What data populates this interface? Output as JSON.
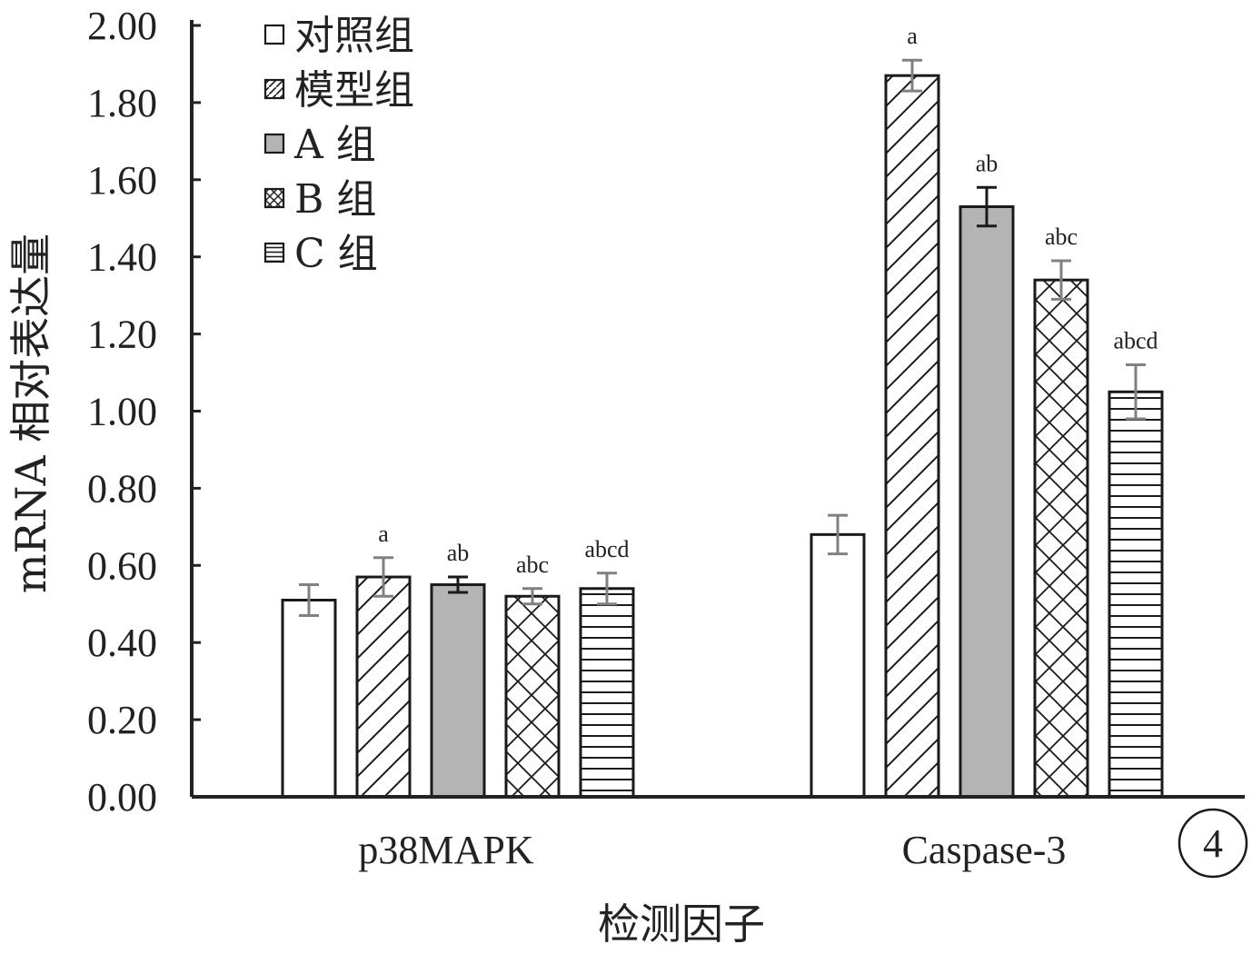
{
  "chart_data": {
    "type": "bar",
    "categories": [
      "p38MAPK",
      "Caspase-3"
    ],
    "series": [
      {
        "name": "对照组",
        "values": [
          0.51,
          0.68
        ],
        "errors": [
          0.04,
          0.05
        ],
        "sig": [
          "",
          ""
        ],
        "pattern": "empty",
        "fill": "#ffffff"
      },
      {
        "name": "模型组",
        "values": [
          0.57,
          1.87
        ],
        "errors": [
          0.05,
          0.04
        ],
        "sig": [
          "a",
          "a"
        ],
        "pattern": "diagonal",
        "fill": "#ffffff"
      },
      {
        "name": "A 组",
        "values": [
          0.55,
          1.53
        ],
        "errors": [
          0.02,
          0.05
        ],
        "sig": [
          "ab",
          "ab"
        ],
        "pattern": "solid",
        "fill": "#b4b4b4"
      },
      {
        "name": "B 组",
        "values": [
          0.52,
          1.34
        ],
        "errors": [
          0.02,
          0.05
        ],
        "sig": [
          "abc",
          "abc"
        ],
        "pattern": "crosshatch",
        "fill": "#ffffff"
      },
      {
        "name": "C 组",
        "values": [
          0.54,
          1.05
        ],
        "errors": [
          0.04,
          0.07
        ],
        "sig": [
          "abcd",
          "abcd"
        ],
        "pattern": "horizontal",
        "fill": "#ffffff"
      }
    ],
    "ylabel": "mRNA 相对表达量",
    "xlabel": "检测因子",
    "ylim": [
      0,
      2.0
    ],
    "yticks": [
      "0.00",
      "0.20",
      "0.40",
      "0.60",
      "0.80",
      "1.00",
      "1.20",
      "1.40",
      "1.60",
      "1.80",
      "2.00"
    ],
    "grid": false,
    "legend_position": "top-left",
    "panel_badge": "4",
    "colors": {
      "axis": "#222222",
      "bar_stroke": "#1a1a1a",
      "error_gray": "#808080",
      "error_dark": "#1a1a1a",
      "solid_fill": "#b4b4b4"
    }
  }
}
